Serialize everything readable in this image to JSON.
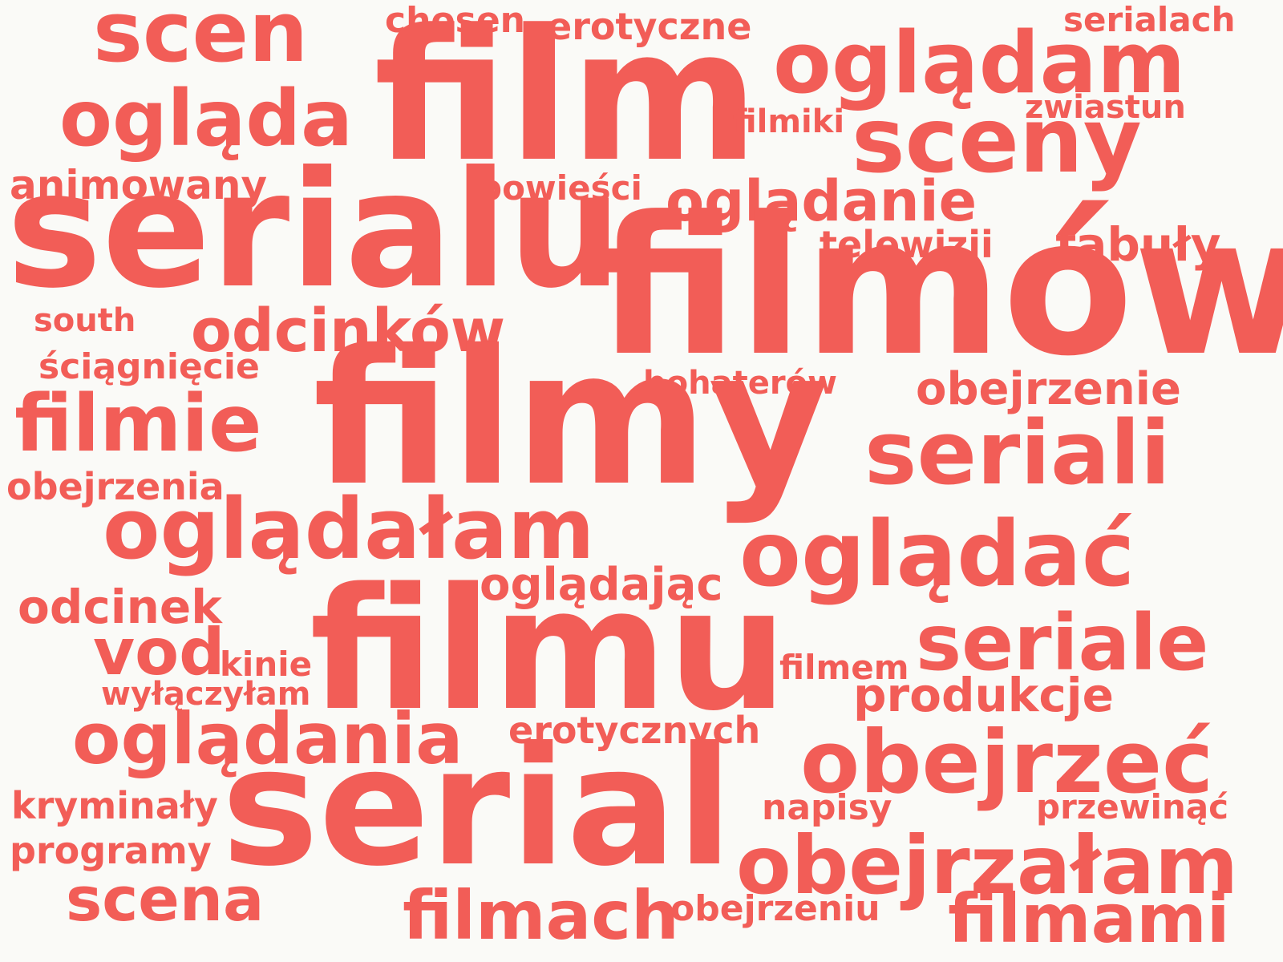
{
  "color": "#f25d57",
  "words": [
    {
      "id": "scen",
      "text": "scen"
    },
    {
      "id": "chosen",
      "text": "chosen"
    },
    {
      "id": "erotyczne",
      "text": "erotyczne"
    },
    {
      "id": "serialach",
      "text": "serialach"
    },
    {
      "id": "film",
      "text": "film"
    },
    {
      "id": "ogladam",
      "text": "oglądam"
    },
    {
      "id": "zwiastun",
      "text": "zwiastun"
    },
    {
      "id": "oglada",
      "text": "ogląda"
    },
    {
      "id": "filmiki",
      "text": "filmiki"
    },
    {
      "id": "sceny",
      "text": "sceny"
    },
    {
      "id": "animowany",
      "text": "animowany"
    },
    {
      "id": "powiesci",
      "text": "powieści"
    },
    {
      "id": "ogladanie",
      "text": "oglądanie"
    },
    {
      "id": "serialu",
      "text": "serialu"
    },
    {
      "id": "telewizji",
      "text": "telewizji"
    },
    {
      "id": "fabuly",
      "text": "fabuły"
    },
    {
      "id": "filmow",
      "text": "filmów"
    },
    {
      "id": "south",
      "text": "south"
    },
    {
      "id": "odcinkow",
      "text": "odcinków"
    },
    {
      "id": "sciagniecie",
      "text": "ściągnięcie"
    },
    {
      "id": "bohaterow",
      "text": "bohaterów"
    },
    {
      "id": "obejrzenie",
      "text": "obejrzenie"
    },
    {
      "id": "filmie",
      "text": "filmie"
    },
    {
      "id": "filmy",
      "text": "filmy"
    },
    {
      "id": "seriali",
      "text": "seriali"
    },
    {
      "id": "obejrzenia",
      "text": "obejrzenia"
    },
    {
      "id": "ogladalam",
      "text": "oglądałam"
    },
    {
      "id": "ogladac",
      "text": "oglądać"
    },
    {
      "id": "ogladajac",
      "text": "oglądając"
    },
    {
      "id": "odcinek",
      "text": "odcinek"
    },
    {
      "id": "seriale",
      "text": "seriale"
    },
    {
      "id": "vod",
      "text": "vod"
    },
    {
      "id": "kinie",
      "text": "kinie"
    },
    {
      "id": "filmu",
      "text": "filmu"
    },
    {
      "id": "filmem",
      "text": "filmem"
    },
    {
      "id": "wylaczylam",
      "text": "wyłączyłam"
    },
    {
      "id": "produkcje",
      "text": "produkcje"
    },
    {
      "id": "ogladania",
      "text": "oglądania"
    },
    {
      "id": "erotycznych",
      "text": "erotycznych"
    },
    {
      "id": "obejrzec",
      "text": "obejrzeć"
    },
    {
      "id": "kryminaly",
      "text": "kryminały"
    },
    {
      "id": "serial",
      "text": "serial"
    },
    {
      "id": "napisy",
      "text": "napisy"
    },
    {
      "id": "przewinac",
      "text": "przewinąć"
    },
    {
      "id": "programy",
      "text": "programy"
    },
    {
      "id": "obejrzalam",
      "text": "obejrzałam"
    },
    {
      "id": "scena",
      "text": "scena"
    },
    {
      "id": "filmach",
      "text": "filmach"
    },
    {
      "id": "obejrzeniu",
      "text": "obejrzeniu"
    },
    {
      "id": "filmami",
      "text": "filmami"
    }
  ]
}
